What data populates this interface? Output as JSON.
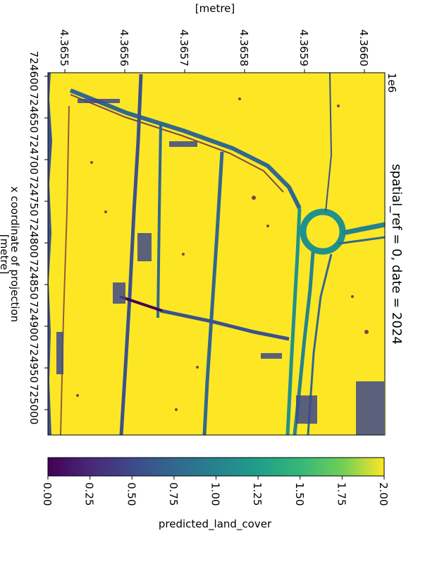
{
  "chart_data": {
    "type": "heatmap",
    "title": "spatial_ref = 0, date = 2024",
    "top_axis": {
      "label": "[metre]",
      "offset_text": "1e6",
      "ticks": [
        "4.3655",
        "4.3656",
        "4.3657",
        "4.3658",
        "4.3659",
        "4.3660"
      ]
    },
    "left_axis": {
      "label_line1": "x coordinate of projection",
      "label_line2": "[metre]",
      "ticks": [
        "724600",
        "724650",
        "724700",
        "724750",
        "724800",
        "724850",
        "724900",
        "724950",
        "725000"
      ]
    },
    "colorbar": {
      "label": "predicted_land_cover",
      "colormap": "viridis",
      "range": [
        0.0,
        2.0
      ],
      "ticks": [
        "0.00",
        "0.25",
        "0.50",
        "0.75",
        "1.00",
        "1.25",
        "1.50",
        "1.75",
        "2.00"
      ]
    },
    "dominant_value": 2.0,
    "colors": {
      "high": "#fde725",
      "mid": "#21918c",
      "low": "#3b528b",
      "min": "#440154"
    },
    "features": [
      "roundabout",
      "dual carriageway",
      "field boundaries",
      "diagonal road"
    ]
  }
}
